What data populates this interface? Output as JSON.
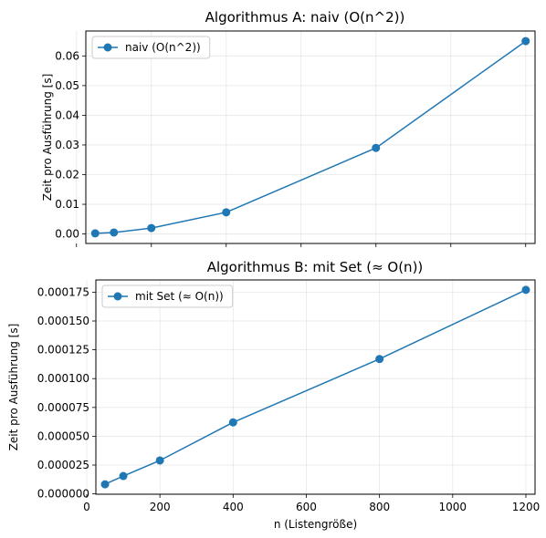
{
  "chart_data": [
    {
      "type": "line",
      "title": "Algorithmus A: naiv (O(n^2))",
      "xlabel": "",
      "ylabel": "Zeit pro Ausführung [s]",
      "xlim": [
        25,
        1225
      ],
      "ylim": [
        -0.0032,
        0.0684
      ],
      "xticks": [
        0,
        200,
        400,
        600,
        800,
        1000,
        1200
      ],
      "xtick_labels_visible": false,
      "yticks": [
        0.0,
        0.01,
        0.02,
        0.03,
        0.04,
        0.05,
        0.06
      ],
      "ytick_labels": [
        "0.00",
        "0.01",
        "0.02",
        "0.03",
        "0.04",
        "0.05",
        "0.06"
      ],
      "grid": true,
      "legend_position": "top-left",
      "series": [
        {
          "name": "naiv (O(n^2))",
          "color": "#1f77b4",
          "marker": "circle",
          "x": [
            50,
            100,
            200,
            400,
            800,
            1200
          ],
          "y": [
            0.0002,
            0.0005,
            0.002,
            0.0073,
            0.029,
            0.065
          ]
        }
      ]
    },
    {
      "type": "line",
      "title": "Algorithmus B: mit Set (≈ O(n))",
      "xlabel": "n (Listengröße)",
      "ylabel": "Zeit pro Ausführung [s]",
      "xlim": [
        25,
        1225
      ],
      "ylim": [
        -3e-07,
        0.0001856
      ],
      "xticks": [
        0,
        200,
        400,
        600,
        800,
        1000,
        1200
      ],
      "xtick_labels": [
        "0",
        "200",
        "400",
        "600",
        "800",
        "1000",
        "1200"
      ],
      "xtick_labels_visible": true,
      "yticks": [
        0.0,
        2.5e-05,
        5e-05,
        7.5e-05,
        0.0001,
        0.000125,
        0.00015,
        0.000175
      ],
      "ytick_labels": [
        "0.000000",
        "0.000025",
        "0.000050",
        "0.000075",
        "0.000100",
        "0.000125",
        "0.000150",
        "0.000175"
      ],
      "grid": true,
      "legend_position": "top-left",
      "series": [
        {
          "name": "mit Set (≈ O(n))",
          "color": "#1f77b4",
          "marker": "circle",
          "x": [
            50,
            100,
            200,
            400,
            800,
            1200
          ],
          "y": [
            8.3e-06,
            1.55e-05,
            2.9e-05,
            6.2e-05,
            0.000117,
            0.000177
          ]
        }
      ]
    }
  ]
}
